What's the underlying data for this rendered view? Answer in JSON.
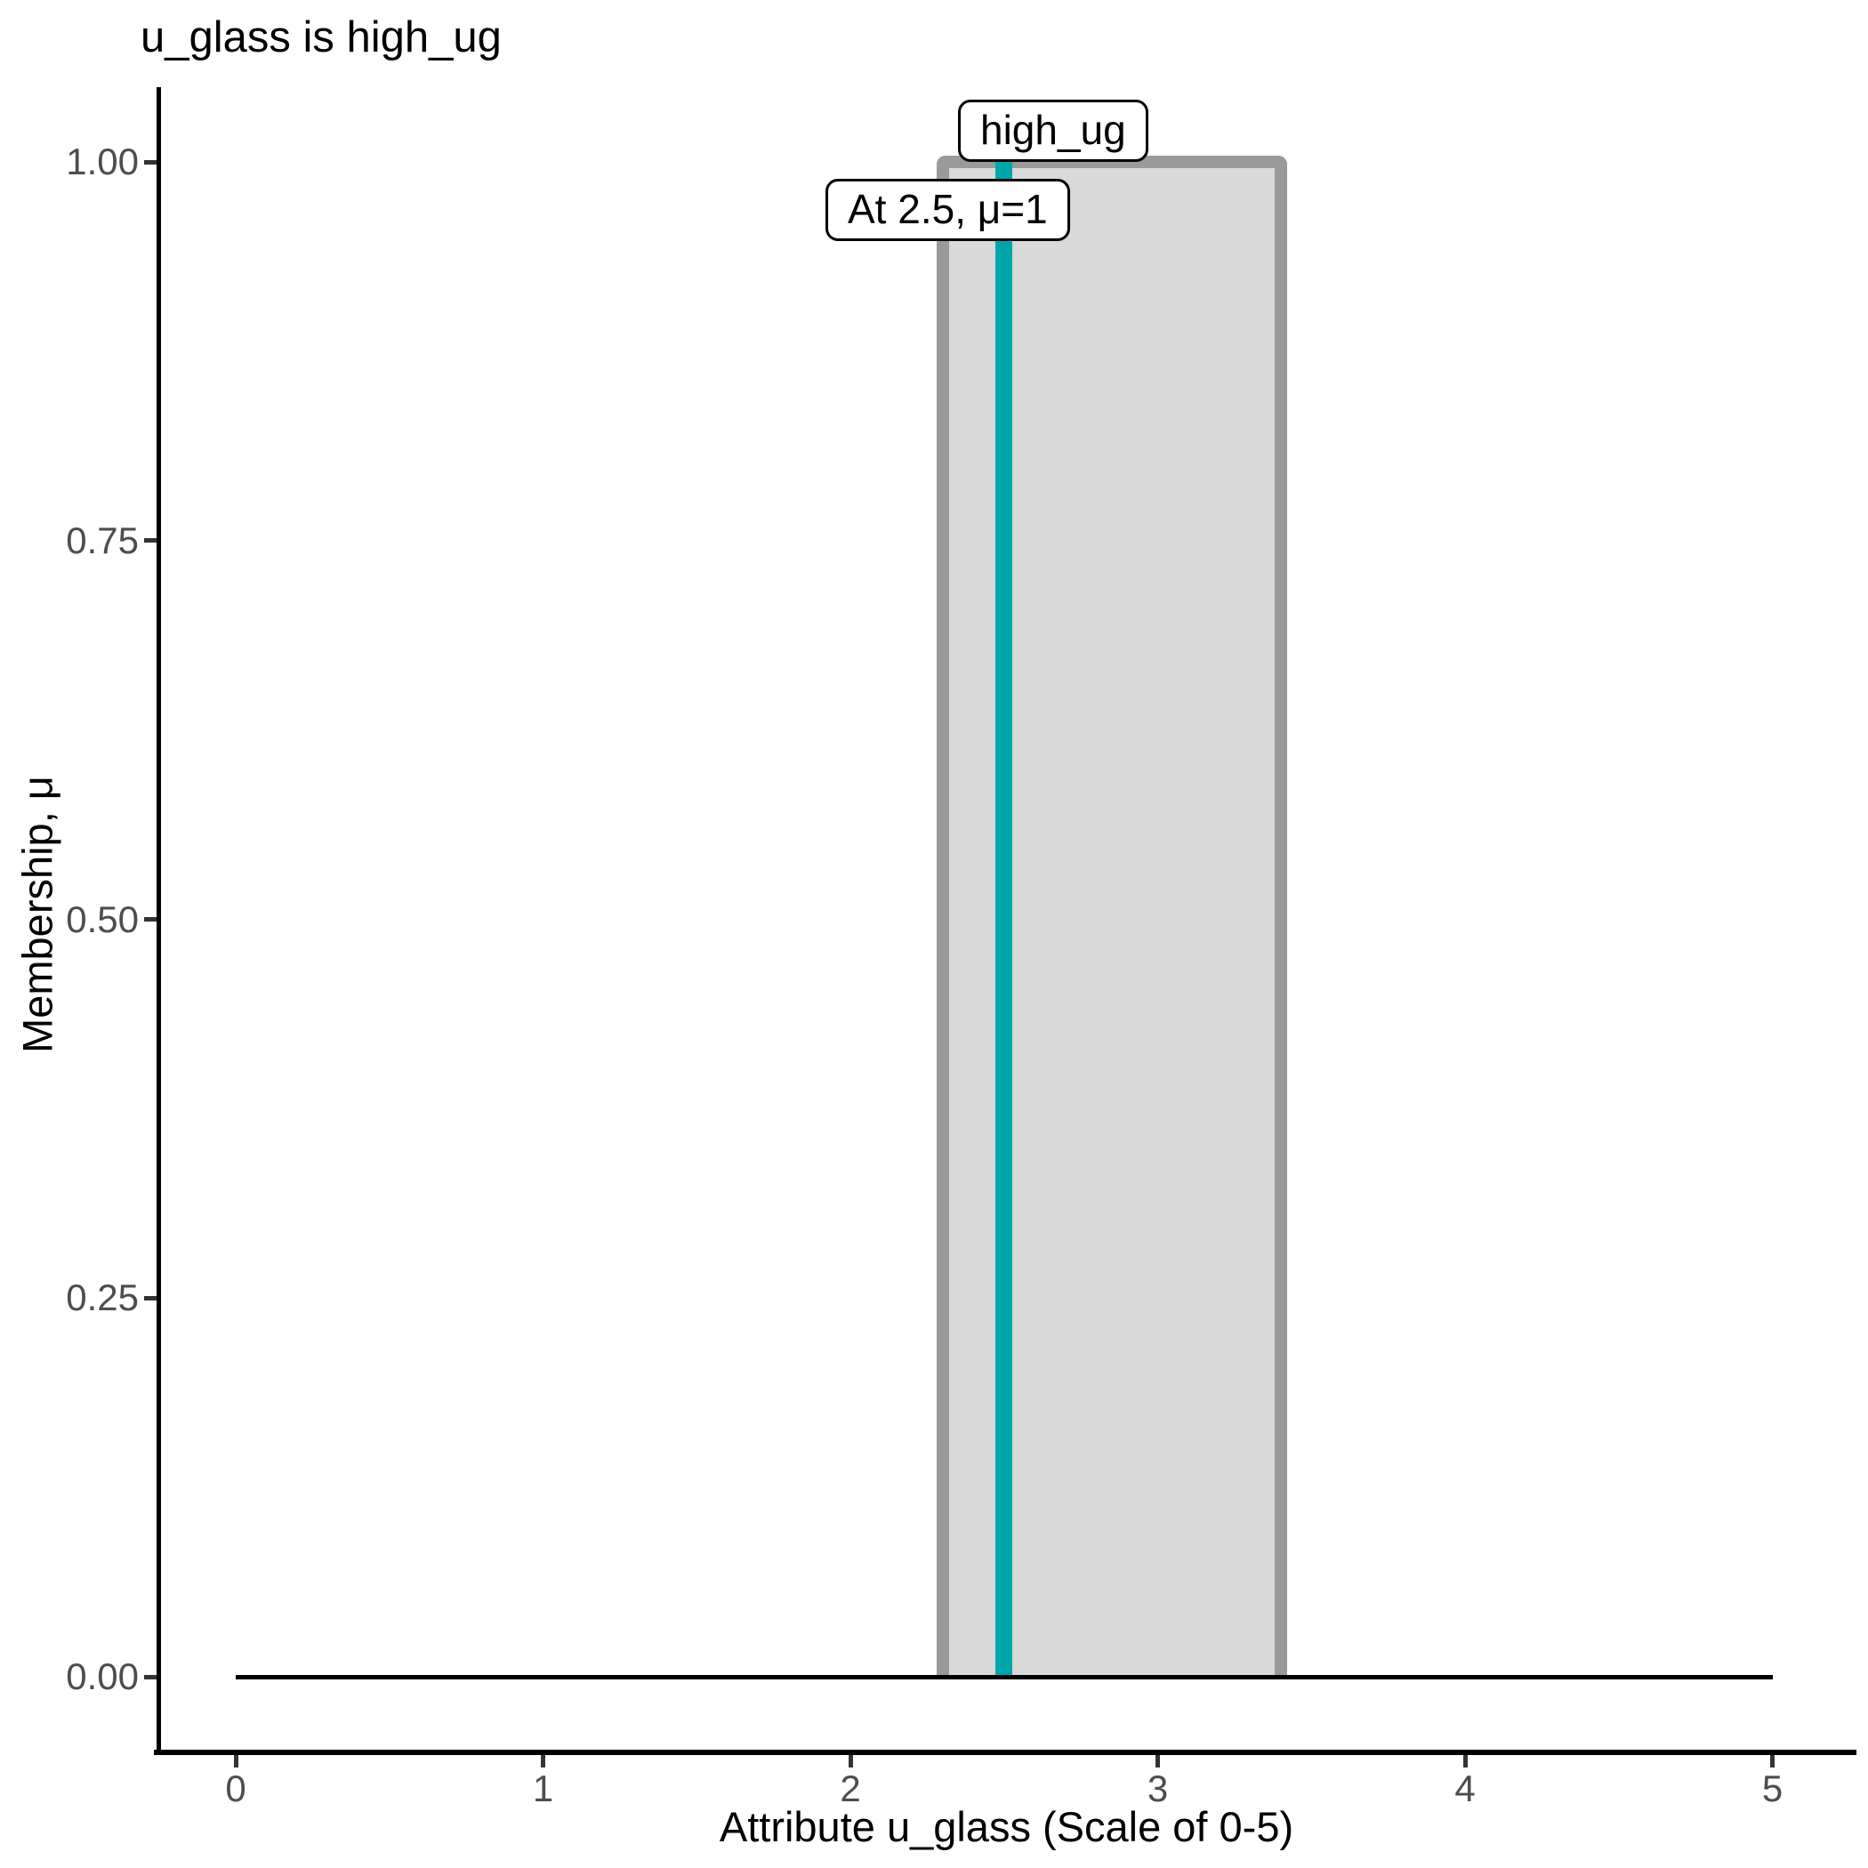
{
  "title": "u_glass is high_ug",
  "axes": {
    "x": {
      "title": "Attribute u_glass (Scale of 0-5)",
      "ticks": [
        0,
        1,
        2,
        3,
        4,
        5
      ],
      "tick_labels": [
        "0",
        "1",
        "2",
        "3",
        "4",
        "5"
      ]
    },
    "y": {
      "title": "Membership, μ",
      "ticks": [
        0,
        0.25,
        0.5,
        0.75,
        1
      ],
      "tick_labels": [
        "0.00",
        "0.25",
        "0.50",
        "0.75",
        "1.00"
      ]
    }
  },
  "annotations": {
    "set_label": "high_ug",
    "point_label": "At 2.5, μ=1"
  },
  "colors": {
    "membership_fill": "#d9d9d9",
    "membership_border": "#9a9a9a",
    "crisp_input_line": "#00a5aa",
    "axis_line": "#000000",
    "tick_label": "#4d4d4d",
    "annotation_border": "#000000",
    "annotation_fill": "#ffffff"
  },
  "chart_data": {
    "type": "area",
    "title": "u_glass is high_ug",
    "xlabel": "Attribute u_glass (Scale of 0-5)",
    "ylabel": "Membership, μ",
    "xlim": [
      0,
      5.15
    ],
    "ylim": [
      0,
      1
    ],
    "grid": false,
    "legend": false,
    "series": [
      {
        "name": "high_ug membership function",
        "kind": "polygon",
        "x": [
          0,
          2.3,
          2.3,
          3.4,
          3.4,
          5
        ],
        "y": [
          0,
          0,
          1,
          1,
          0,
          0
        ],
        "fill": "#d9d9d9",
        "stroke": "#9a9a9a"
      },
      {
        "name": "crisp input marker",
        "kind": "vline",
        "x": 2.5,
        "y0": 0,
        "y1": 1,
        "stroke": "#00a5aa"
      },
      {
        "name": "zero membership baseline",
        "kind": "hline",
        "y": 0,
        "x0": 0,
        "x1": 5,
        "stroke": "#000000"
      }
    ],
    "annotations": [
      {
        "text": "high_ug",
        "x": 2.85,
        "y": 1.03
      },
      {
        "text": "At 2.5, μ=1",
        "x": 2.5,
        "y": 0.96
      }
    ]
  }
}
